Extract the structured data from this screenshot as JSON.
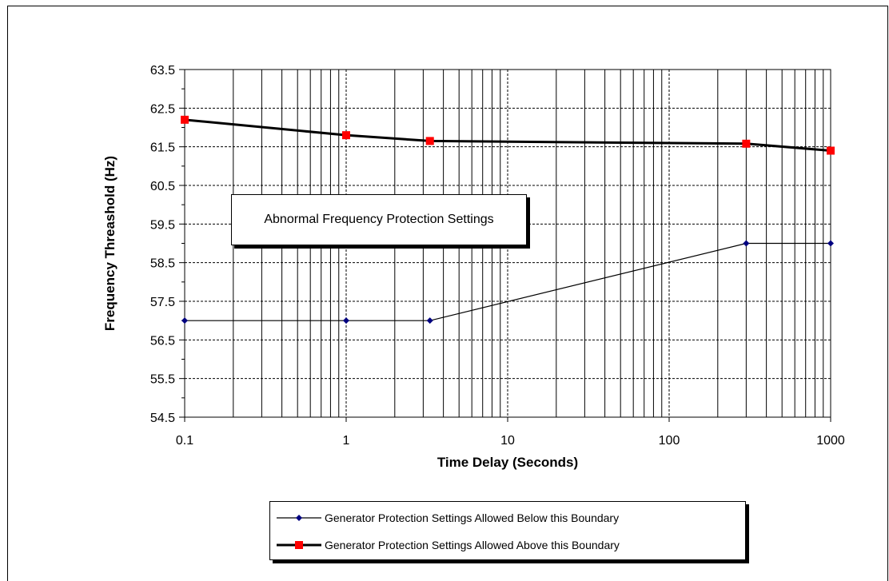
{
  "chart_data": {
    "type": "line",
    "xscale": "log",
    "xlim": [
      0.1,
      1000
    ],
    "ylim": [
      54.5,
      63.5
    ],
    "xticks": [
      "0.1",
      "1",
      "10",
      "100",
      "1000"
    ],
    "yticks": [
      "54.5",
      "55.5",
      "56.5",
      "57.5",
      "58.5",
      "59.5",
      "60.5",
      "61.5",
      "62.5",
      "63.5"
    ],
    "xlabel": "Time Delay (Seconds)",
    "ylabel": "Frequency Threashold (Hz)",
    "grid": true,
    "legend_position": "bottom",
    "annotation": "Abnormal Frequency Protection Settings",
    "series": [
      {
        "name": "Generator Protection Settings Allowed Below this Boundary",
        "color": "#000080",
        "line_color": "#000000",
        "marker": "diamond",
        "x": [
          0.1,
          1,
          3.3,
          300,
          1000
        ],
        "y": [
          57.0,
          57.0,
          57.0,
          59.0,
          59.0
        ]
      },
      {
        "name": "Generator Protection Settings Allowed Above this Boundary",
        "color": "#ff0000",
        "line_color": "#000000",
        "marker": "square",
        "x": [
          0.1,
          1,
          3.3,
          300,
          1000
        ],
        "y": [
          62.2,
          61.8,
          61.65,
          61.58,
          61.4
        ]
      }
    ]
  }
}
